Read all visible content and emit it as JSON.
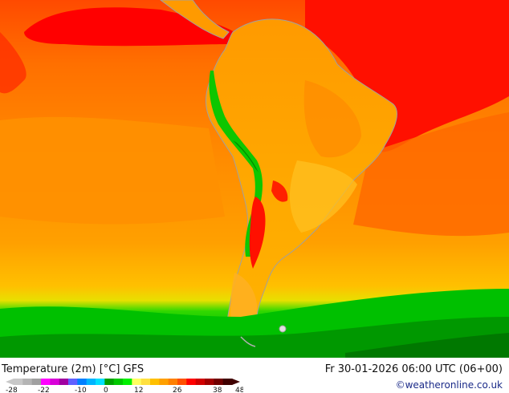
{
  "map": {
    "title": "Temperature (2m) [°C] GFS",
    "valid_time": "Fr 30-01-2026 06:00 UTC (06+00)",
    "credit": "©weatheronline.co.uk",
    "region": "South America",
    "colors": {
      "very_hot": "#ff0000",
      "hot": "#ff4a00",
      "warm": "#ff8a00",
      "mild": "#ffaa00",
      "cool": "#ffd020",
      "cold_green": "#00c800",
      "deep_green": "#008c00",
      "coastline": "#a0a0a0"
    }
  },
  "legend": {
    "tick_labels": [
      "-28",
      "-22",
      "-10",
      "0",
      "12",
      "26",
      "38",
      "48"
    ],
    "swatches": [
      "#c8c8c8",
      "#b4b4b4",
      "#a0a0a0",
      "#ff00ff",
      "#d800d8",
      "#a000a0",
      "#6060ff",
      "#0080ff",
      "#00b4ff",
      "#00e0ff",
      "#00a000",
      "#00c800",
      "#00f000",
      "#ffff60",
      "#ffe040",
      "#ffc000",
      "#ffa000",
      "#ff8000",
      "#ff5000",
      "#ff0000",
      "#d00000",
      "#a00000",
      "#700000",
      "#400000"
    ]
  }
}
